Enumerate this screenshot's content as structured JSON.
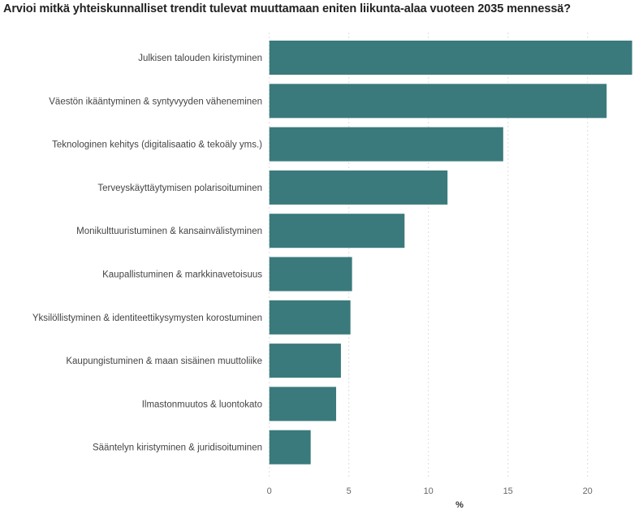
{
  "chart_data": {
    "type": "bar",
    "orientation": "horizontal",
    "title": "Arvioi mitkä yhteiskunnalliset trendit tulevat muuttamaan eniten liikunta-alaa vuoteen 2035 mennessä?",
    "xlabel": "%",
    "ylabel": "",
    "categories": [
      "Julkisen talouden kiristyminen",
      "Väestön ikääntyminen & syntyvyyden väheneminen",
      "Teknologinen kehitys (digitalisaatio & tekoäly yms.)",
      "Terveyskäyttäytymisen polarisoituminen",
      "Monikulttuuristuminen & kansainvälistyminen",
      "Kaupallistuminen & markkinavetoisuus",
      "Yksilöllistyminen & identiteettikysymysten korostuminen",
      "Kaupungistuminen & maan sisäinen muuttoliike",
      "Ilmastonmuutos & luontokato",
      "Sääntelyn kiristyminen & juridisoituminen"
    ],
    "values": [
      22.8,
      21.2,
      14.7,
      11.2,
      8.5,
      5.2,
      5.1,
      4.5,
      4.2,
      2.6
    ],
    "xlim": [
      0,
      23
    ],
    "xticks": [
      "0",
      "5",
      "10",
      "15",
      "20"
    ],
    "grid": "vertical dotted",
    "bar_color": "#3a7a7c"
  }
}
